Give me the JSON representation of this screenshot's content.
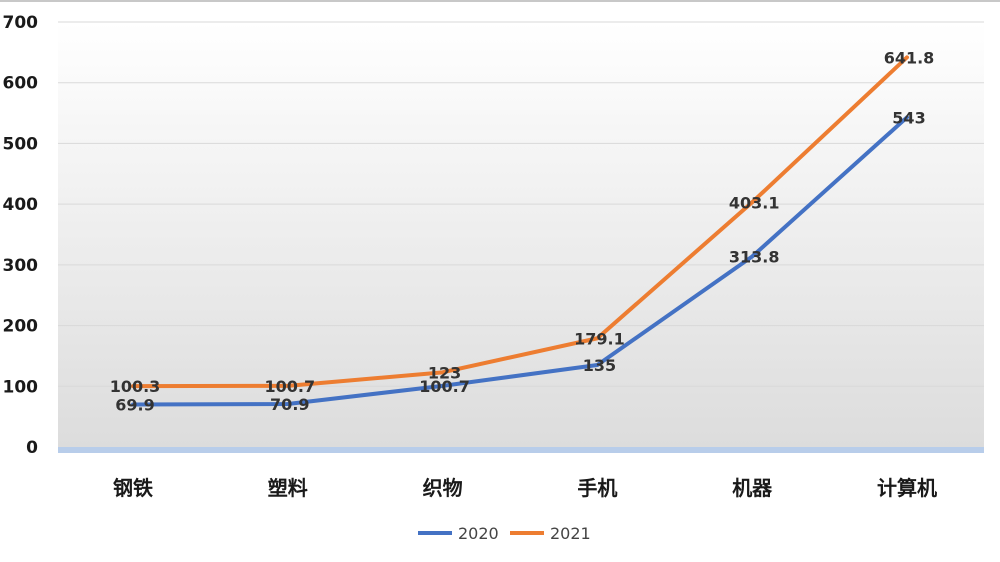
{
  "chart_data": {
    "type": "line",
    "title": "",
    "xlabel": "",
    "ylabel": "",
    "categories": [
      "钢铁",
      "塑料",
      "织物",
      "手机",
      "机器",
      "计算机"
    ],
    "ylim": [
      0,
      700
    ],
    "yticks": [
      0,
      100,
      200,
      300,
      400,
      500,
      600,
      700
    ],
    "grid": true,
    "legend_position": "bottom",
    "series": [
      {
        "name": "2020",
        "color": "#4472C4",
        "values": [
          69.9,
          70.9,
          100.7,
          135,
          313.8,
          543
        ],
        "labels": [
          "69.9",
          "70.9",
          "100.7",
          "135",
          "313.8",
          "543"
        ]
      },
      {
        "name": "2021",
        "color": "#ED7D31",
        "values": [
          100.3,
          100.7,
          123,
          179.1,
          403.1,
          641.8
        ],
        "labels": [
          "100.3",
          "100.7",
          "123",
          "179.1",
          "403.1",
          "641.8"
        ]
      }
    ]
  }
}
